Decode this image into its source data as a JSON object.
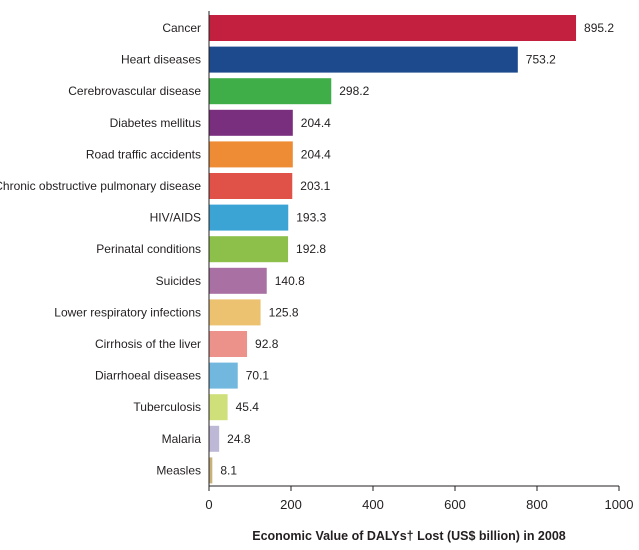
{
  "chart_data": {
    "type": "bar",
    "orientation": "horizontal",
    "categories": [
      "Cancer",
      "Heart diseases",
      "Cerebrovascular disease",
      "Diabetes mellitus",
      "Road traffic accidents",
      "Chronic obstructive pulmonary disease",
      "HIV/AIDS",
      "Perinatal conditions",
      "Suicides",
      "Lower respiratory infections",
      "Cirrhosis of the liver",
      "Diarrhoeal diseases",
      "Tuberculosis",
      "Malaria",
      "Measles"
    ],
    "values": [
      895.2,
      753.2,
      298.2,
      204.4,
      204.4,
      203.1,
      193.3,
      192.8,
      140.8,
      125.8,
      92.8,
      70.1,
      45.4,
      24.8,
      8.1
    ],
    "value_labels": [
      "895.2",
      "753.2",
      "298.2",
      "204.4",
      "204.4",
      "203.1",
      "193.3",
      "192.8",
      "140.8",
      "125.8",
      "92.8",
      "70.1",
      "45.4",
      "24.8",
      "8.1"
    ],
    "colors": [
      "#c3203f",
      "#1c4a8c",
      "#3fae49",
      "#7a2e7e",
      "#ee8b35",
      "#e05247",
      "#3ba4d4",
      "#8cc04b",
      "#a970a3",
      "#ecc271",
      "#ec928a",
      "#72b7de",
      "#cfe07a",
      "#bcb8d6",
      "#c8b27a"
    ],
    "xticks": [
      0,
      200,
      400,
      600,
      800,
      1000
    ],
    "xtick_labels": [
      "0",
      "200",
      "400",
      "600",
      "800",
      "1000"
    ],
    "xlim": [
      0,
      1000
    ],
    "title": "",
    "ylabel": "",
    "xlabel": "Economic Value of DALYs† Lost (US$ billion) in 2008",
    "grid": false,
    "legend": "none"
  }
}
